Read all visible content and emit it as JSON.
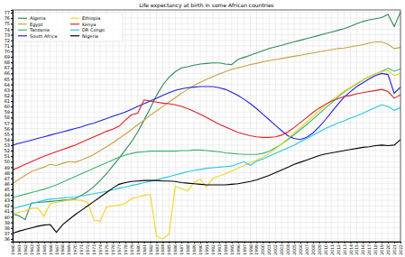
{
  "chart_data": {
    "type": "line",
    "title": "Life expectancy at birth in some African countries",
    "x": [
      1960,
      1961,
      1962,
      1963,
      1964,
      1965,
      1966,
      1967,
      1968,
      1969,
      1970,
      1971,
      1972,
      1973,
      1974,
      1975,
      1976,
      1977,
      1978,
      1979,
      1980,
      1981,
      1982,
      1983,
      1984,
      1985,
      1986,
      1987,
      1988,
      1989,
      1990,
      1991,
      1992,
      1993,
      1994,
      1995,
      1996,
      1997,
      1998,
      1999,
      2000,
      2001,
      2002,
      2003,
      2004,
      2005,
      2006,
      2007,
      2008,
      2009,
      2010,
      2011,
      2012,
      2013,
      2014,
      2015,
      2016,
      2017,
      2018,
      2019,
      2020,
      2021,
      2022
    ],
    "xlim": [
      1960,
      2022
    ],
    "xticks": [
      1960,
      1961,
      1962,
      1963,
      1964,
      1965,
      1966,
      1967,
      1968,
      1969,
      1970,
      1971,
      1972,
      1973,
      1974,
      1975,
      1976,
      1977,
      1978,
      1979,
      1980,
      1981,
      1982,
      1983,
      1984,
      1985,
      1986,
      1987,
      1988,
      1989,
      1990,
      1991,
      1992,
      1993,
      1994,
      1995,
      1996,
      1997,
      1998,
      1999,
      2000,
      2001,
      2002,
      2003,
      2004,
      2005,
      2006,
      2007,
      2008,
      2009,
      2010,
      2011,
      2012,
      2013,
      2014,
      2015,
      2016,
      2017,
      2018,
      2019,
      2020,
      2021,
      2022
    ],
    "ylim": [
      35.5,
      77.5
    ],
    "yticks": [
      36,
      37,
      38,
      39,
      40,
      41,
      42,
      43,
      44,
      45,
      46,
      47,
      48,
      49,
      50,
      51,
      52,
      53,
      54,
      55,
      56,
      57,
      58,
      59,
      60,
      61,
      62,
      63,
      64,
      65,
      66,
      67,
      68,
      69,
      70,
      71,
      72,
      73,
      74,
      75,
      76,
      77
    ],
    "grid": true,
    "legend": "upper left",
    "series": [
      {
        "name": "Algeria",
        "color": "#2e8b57",
        "values": [
          40.5,
          40.2,
          39.5,
          42.5,
          42.6,
          42.7,
          42.8,
          42.9,
          43.0,
          43.1,
          43.3,
          43.9,
          44.6,
          45.5,
          46.6,
          47.8,
          49.2,
          50.6,
          52.1,
          53.6,
          55.4,
          57.5,
          59.7,
          62.0,
          63.9,
          65.3,
          66.3,
          67.0,
          67.2,
          67.5,
          67.7,
          67.8,
          67.9,
          67.9,
          67.7,
          67.6,
          68.5,
          68.9,
          69.3,
          69.7,
          70.1,
          70.5,
          70.8,
          71.1,
          71.4,
          71.7,
          72.0,
          72.3,
          72.6,
          72.9,
          73.2,
          73.5,
          73.8,
          74.1,
          74.5,
          75.0,
          75.4,
          75.7,
          75.9,
          76.1,
          76.7,
          74.5,
          77.1
        ]
      },
      {
        "name": "Egypt",
        "color": "#c8a040",
        "values": [
          46.0,
          46.8,
          47.5,
          48.2,
          48.6,
          49.0,
          49.5,
          49.3,
          49.7,
          50.0,
          49.9,
          50.3,
          50.8,
          51.3,
          52.0,
          52.7,
          53.4,
          54.2,
          55.0,
          55.8,
          56.7,
          57.5,
          58.4,
          59.2,
          60.0,
          60.8,
          61.6,
          62.4,
          63.1,
          63.8,
          64.4,
          64.9,
          65.4,
          65.9,
          66.3,
          66.7,
          67.0,
          67.3,
          67.6,
          67.8,
          68.1,
          68.3,
          68.5,
          68.7,
          68.9,
          69.1,
          69.3,
          69.5,
          69.7,
          69.9,
          70.1,
          70.3,
          70.5,
          70.6,
          70.8,
          71.0,
          71.2,
          71.5,
          71.7,
          71.7,
          71.3,
          70.5,
          70.7
        ]
      },
      {
        "name": "Tanzania",
        "color": "#3cb371",
        "values": [
          43.5,
          43.8,
          44.1,
          44.4,
          44.7,
          45.0,
          45.4,
          45.8,
          46.3,
          46.8,
          47.3,
          47.8,
          48.3,
          48.8,
          49.3,
          49.8,
          50.3,
          50.8,
          51.2,
          51.5,
          51.7,
          51.8,
          51.9,
          51.9,
          51.9,
          51.9,
          51.9,
          52.0,
          52.0,
          52.1,
          52.1,
          52.0,
          51.9,
          51.8,
          51.6,
          51.5,
          51.4,
          51.3,
          51.3,
          51.3,
          51.5,
          51.9,
          52.5,
          53.2,
          54.0,
          54.9,
          55.8,
          56.7,
          57.7,
          58.7,
          59.7,
          60.7,
          61.7,
          62.6,
          63.4,
          64.1,
          64.8,
          65.4,
          65.9,
          66.4,
          66.9,
          66.4,
          66.8
        ]
      },
      {
        "name": "South Africa",
        "color": "#2222dd",
        "values": [
          53.0,
          53.3,
          53.6,
          53.9,
          54.2,
          54.5,
          54.8,
          55.1,
          55.4,
          55.7,
          56.0,
          56.3,
          56.7,
          57.0,
          57.4,
          57.8,
          58.2,
          58.6,
          59.0,
          59.5,
          60.0,
          60.5,
          61.0,
          61.5,
          62.0,
          62.5,
          62.9,
          63.2,
          63.4,
          63.5,
          63.6,
          63.6,
          63.6,
          63.4,
          63.1,
          62.6,
          62.0,
          61.3,
          60.5,
          59.6,
          58.6,
          57.6,
          56.6,
          55.6,
          54.7,
          54.2,
          54.0,
          54.4,
          55.2,
          56.3,
          57.6,
          59.0,
          60.4,
          61.7,
          62.7,
          63.6,
          64.3,
          65.0,
          65.6,
          66.0,
          65.8,
          62.4,
          63.5
        ]
      },
      {
        "name": "Ethiopia",
        "color": "#f2d422",
        "values": [
          40.5,
          40.8,
          41.1,
          41.5,
          41.6,
          40.1,
          42.4,
          42.6,
          42.8,
          43.0,
          43.1,
          43.0,
          42.6,
          39.4,
          39.2,
          41.8,
          42.0,
          42.1,
          42.4,
          43.3,
          43.6,
          43.9,
          44.0,
          36.5,
          36.0,
          36.9,
          45.5,
          45.1,
          44.7,
          46.3,
          46.8,
          45.4,
          47.0,
          47.4,
          47.8,
          48.3,
          48.8,
          49.3,
          49.8,
          50.3,
          50.8,
          51.5,
          52.3,
          53.2,
          54.2,
          55.2,
          56.2,
          57.2,
          58.2,
          59.2,
          60.2,
          61.1,
          62.0,
          62.8,
          63.5,
          64.2,
          64.8,
          65.4,
          65.9,
          66.3,
          66.5,
          65.6,
          66.0
        ]
      },
      {
        "name": "Kenya",
        "color": "#dd2222",
        "values": [
          48.5,
          49.0,
          49.5,
          50.0,
          50.5,
          51.0,
          51.4,
          51.8,
          52.2,
          52.6,
          53.0,
          53.5,
          54.0,
          54.5,
          55.0,
          55.5,
          55.9,
          56.4,
          57.5,
          58.5,
          58.8,
          61.2,
          61.0,
          60.8,
          60.6,
          60.5,
          60.3,
          60.0,
          59.6,
          59.1,
          58.6,
          58.0,
          57.4,
          56.8,
          56.3,
          55.8,
          55.3,
          55.0,
          54.7,
          54.5,
          54.4,
          54.4,
          54.5,
          54.8,
          55.4,
          56.2,
          57.1,
          58.0,
          58.9,
          59.7,
          60.4,
          61.0,
          61.4,
          61.8,
          62.0,
          62.3,
          62.5,
          62.7,
          62.9,
          63.1,
          62.7,
          61.5,
          62.1
        ]
      },
      {
        "name": "DR Congo",
        "color": "#22c8e6",
        "values": [
          41.5,
          41.8,
          42.1,
          42.4,
          42.7,
          43.0,
          43.2,
          43.3,
          43.4,
          43.5,
          43.6,
          43.8,
          44.0,
          44.2,
          44.4,
          44.6,
          44.9,
          45.2,
          45.4,
          45.7,
          45.9,
          46.2,
          46.4,
          46.7,
          47.0,
          47.3,
          47.6,
          47.9,
          48.2,
          48.4,
          48.6,
          48.8,
          48.9,
          49.0,
          49.1,
          49.2,
          49.6,
          50.0,
          49.3,
          50.1,
          50.5,
          51.0,
          51.5,
          52.0,
          52.5,
          53.0,
          53.6,
          54.2,
          54.8,
          55.4,
          56.0,
          56.5,
          57.0,
          57.4,
          57.9,
          58.3,
          58.8,
          59.3,
          59.8,
          60.3,
          60.0,
          59.3,
          59.8
        ]
      },
      {
        "name": "Nigeria",
        "color": "#000000",
        "values": [
          37.0,
          37.4,
          37.7,
          38.0,
          38.3,
          38.5,
          38.6,
          37.2,
          38.6,
          39.5,
          40.4,
          41.2,
          42.0,
          42.8,
          43.6,
          44.4,
          45.2,
          45.9,
          46.2,
          46.4,
          46.5,
          46.6,
          46.6,
          46.6,
          46.5,
          46.5,
          46.4,
          46.2,
          46.1,
          46.0,
          45.9,
          45.8,
          45.8,
          45.8,
          45.8,
          45.9,
          46.0,
          46.2,
          46.4,
          46.7,
          47.1,
          47.5,
          48.0,
          48.5,
          49.0,
          49.5,
          49.9,
          50.3,
          50.7,
          51.1,
          51.4,
          51.6,
          51.8,
          52.0,
          52.2,
          52.4,
          52.6,
          52.7,
          52.9,
          53.0,
          52.9,
          53.0,
          54.0
        ]
      }
    ]
  }
}
